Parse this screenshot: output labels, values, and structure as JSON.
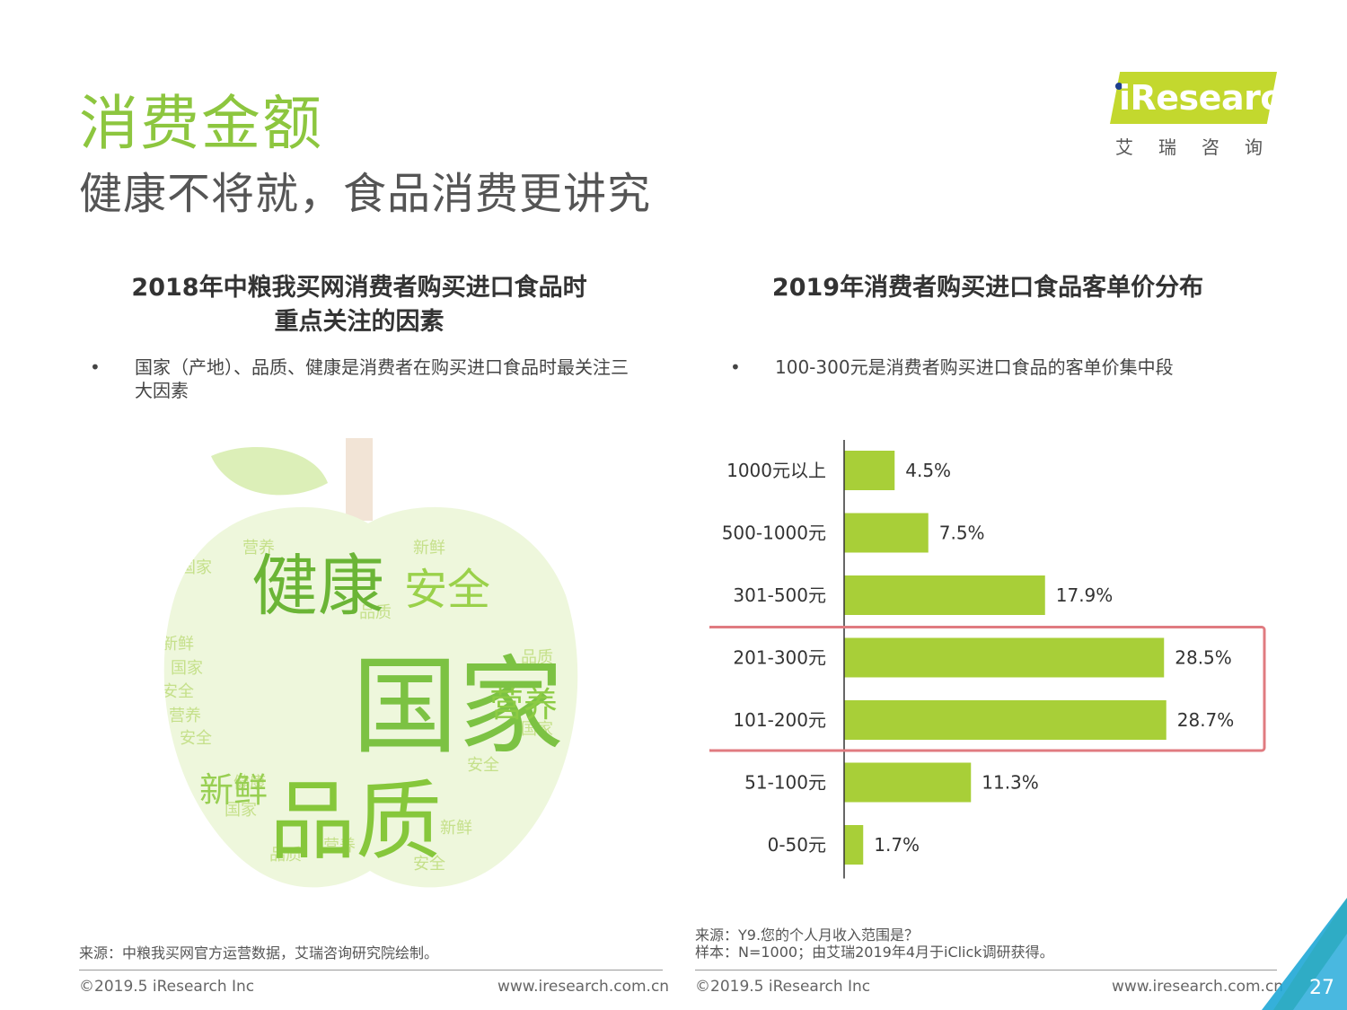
{
  "header": {
    "title": "消费金额",
    "subtitle": "健康不将就，食品消费更讲究"
  },
  "logo": {
    "brand": "iResearch",
    "cn": "艾瑞咨询",
    "band_color": "#c3d82e"
  },
  "left_panel": {
    "title_line1": "2018年中粮我买网消费者购买进口食品时",
    "title_line2": "重点关注的因素",
    "bullet": "国家（产地）、品质、健康是消费者在购买进口食品时最关注三大因素",
    "source": "来源：中粮我买网官方运营数据，艾瑞咨询研究院绘制。",
    "wordcloud": {
      "shape": "apple",
      "words": [
        {
          "text": "国家",
          "weight": 100
        },
        {
          "text": "品质",
          "weight": 80
        },
        {
          "text": "健康",
          "weight": 62
        },
        {
          "text": "安全",
          "weight": 42
        },
        {
          "text": "营养",
          "weight": 34
        },
        {
          "text": "新鲜",
          "weight": 34
        }
      ]
    }
  },
  "right_panel": {
    "title": "2019年消费者购买进口食品客单价分布",
    "bullet": "100-300元是消费者购买进口食品的客单价集中段",
    "source_line1": "来源：Y9.您的个人月收入范围是？",
    "source_line2": "样本：N=1000；由艾瑞2019年4月于iClick调研获得。"
  },
  "chart_data": {
    "type": "bar",
    "orientation": "horizontal",
    "categories": [
      "1000元以上",
      "500-1000元",
      "301-500元",
      "201-300元",
      "101-200元",
      "51-100元",
      "0-50元"
    ],
    "values": [
      4.5,
      7.5,
      17.9,
      28.5,
      28.7,
      11.3,
      1.7
    ],
    "value_labels": [
      "4.5%",
      "7.5%",
      "17.9%",
      "28.5%",
      "28.7%",
      "11.3%",
      "1.7%"
    ],
    "unit": "%",
    "xlim": [
      0,
      30
    ],
    "highlight": [
      "201-300元",
      "101-200元"
    ],
    "bar_color": "#a8cf38",
    "highlight_color": "#e07b80",
    "grid": false,
    "title": "2019年消费者购买进口食品客单价分布"
  },
  "footer": {
    "copyright": "©2019.5 iResearch Inc",
    "url": "www.iresearch.com.cn",
    "page": "27"
  }
}
